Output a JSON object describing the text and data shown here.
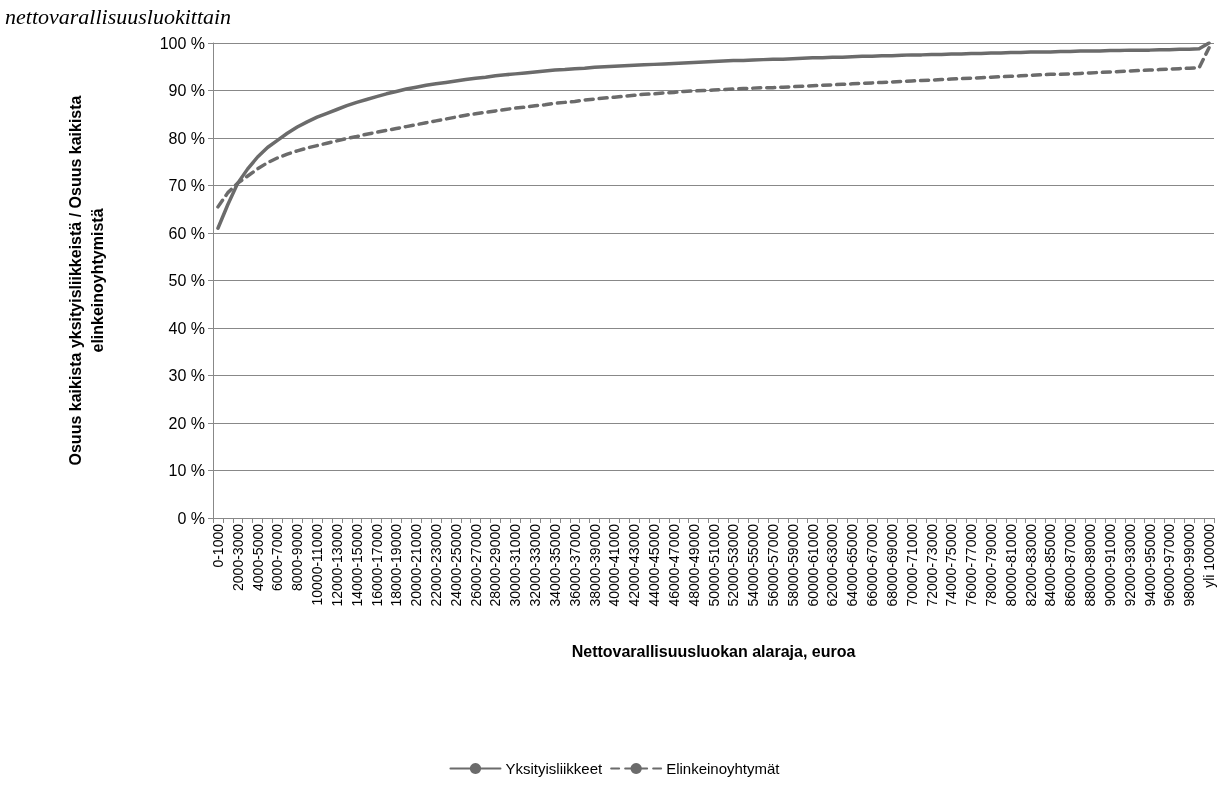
{
  "chart_data": {
    "type": "line",
    "title": "nettovarallisuusluokittain",
    "xlabel": "Nettovarallisuusluokan alaraja, euroa",
    "ylabel": "Osuus kaikista yksityisliikkeistä / Osuus kaikista\nelinkeinoyhtymistä",
    "categories": [
      "0-1000",
      null,
      "2000-3000",
      null,
      "4000-5000",
      null,
      "6000-7000",
      null,
      "8000-9000",
      null,
      "10000-11000",
      null,
      "12000-13000",
      null,
      "14000-15000",
      null,
      "16000-17000",
      null,
      "18000-19000",
      null,
      "20000-21000",
      null,
      "22000-23000",
      null,
      "24000-25000",
      null,
      "26000-27000",
      null,
      "28000-29000",
      null,
      "30000-31000",
      null,
      "32000-33000",
      null,
      "34000-35000",
      null,
      "36000-37000",
      null,
      "38000-39000",
      null,
      "40000-41000",
      null,
      "42000-43000",
      null,
      "44000-45000",
      null,
      "46000-47000",
      null,
      "48000-49000",
      null,
      "50000-51000",
      null,
      "52000-53000",
      null,
      "54000-55000",
      null,
      "56000-57000",
      null,
      "58000-59000",
      null,
      "60000-61000",
      null,
      "62000-63000",
      null,
      "64000-65000",
      null,
      "66000-67000",
      null,
      "68000-69000",
      null,
      "70000-71000",
      null,
      "72000-73000",
      null,
      "74000-75000",
      null,
      "76000-77000",
      null,
      "78000-79000",
      null,
      "80000-81000",
      null,
      "82000-83000",
      null,
      "84000-85000",
      null,
      "86000-87000",
      null,
      "88000-89000",
      null,
      "90000-91000",
      null,
      "92000-93000",
      null,
      "94000-95000",
      null,
      "96000-97000",
      null,
      "98000-99000",
      null,
      "yli 100000"
    ],
    "series": [
      {
        "name": "Yksityisliikkeet",
        "color": "#6b6b6b",
        "line_style": "solid",
        "values": [
          61,
          66,
          70.5,
          73.5,
          76,
          78,
          79.5,
          81,
          82.3,
          83.4,
          84.4,
          85.2,
          86,
          86.8,
          87.5,
          88.1,
          88.7,
          89.3,
          89.8,
          90.3,
          90.7,
          91.1,
          91.4,
          91.7,
          92,
          92.3,
          92.6,
          92.8,
          93.1,
          93.3,
          93.5,
          93.7,
          93.9,
          94.1,
          94.3,
          94.4,
          94.6,
          94.7,
          94.9,
          95,
          95.1,
          95.2,
          95.3,
          95.4,
          95.5,
          95.6,
          95.7,
          95.8,
          95.9,
          96,
          96.1,
          96.2,
          96.3,
          96.3,
          96.4,
          96.5,
          96.6,
          96.6,
          96.7,
          96.8,
          96.9,
          96.9,
          97,
          97,
          97.1,
          97.2,
          97.2,
          97.3,
          97.3,
          97.4,
          97.5,
          97.5,
          97.6,
          97.6,
          97.7,
          97.7,
          97.8,
          97.8,
          97.9,
          97.9,
          98,
          98,
          98.1,
          98.1,
          98.1,
          98.2,
          98.2,
          98.3,
          98.3,
          98.3,
          98.4,
          98.4,
          98.5,
          98.5,
          98.5,
          98.6,
          98.6,
          98.7,
          98.7,
          98.8,
          100
        ]
      },
      {
        "name": "Elinkeinoyhtymät",
        "color": "#6b6b6b",
        "line_style": "dashed",
        "values": [
          65.5,
          68.5,
          70.5,
          72,
          73.5,
          74.8,
          75.8,
          76.6,
          77.3,
          77.9,
          78.4,
          78.9,
          79.4,
          79.9,
          80.3,
          80.8,
          81.2,
          81.6,
          82,
          82.4,
          82.8,
          83.2,
          83.6,
          84,
          84.4,
          84.8,
          85.1,
          85.4,
          85.7,
          86,
          86.3,
          86.5,
          86.8,
          87,
          87.3,
          87.5,
          87.7,
          88,
          88.2,
          88.4,
          88.6,
          88.8,
          89,
          89.2,
          89.3,
          89.5,
          89.6,
          89.8,
          89.9,
          90,
          90.1,
          90.2,
          90.3,
          90.4,
          90.5,
          90.6,
          90.6,
          90.7,
          90.8,
          90.9,
          91,
          91.1,
          91.2,
          91.3,
          91.4,
          91.5,
          91.6,
          91.7,
          91.8,
          91.9,
          92,
          92.1,
          92.2,
          92.3,
          92.4,
          92.5,
          92.6,
          92.7,
          92.8,
          92.9,
          93,
          93.1,
          93.2,
          93.3,
          93.4,
          93.4,
          93.5,
          93.6,
          93.7,
          93.8,
          93.9,
          94,
          94.1,
          94.2,
          94.3,
          94.4,
          94.5,
          94.6,
          94.7,
          94.8,
          99
        ]
      }
    ],
    "ylim": [
      0,
      100
    ],
    "yticks": [
      {
        "value": 0,
        "label": "0 %"
      },
      {
        "value": 10,
        "label": "10 %"
      },
      {
        "value": 20,
        "label": "20 %"
      },
      {
        "value": 30,
        "label": "30 %"
      },
      {
        "value": 40,
        "label": "40 %"
      },
      {
        "value": 50,
        "label": "50 %"
      },
      {
        "value": 60,
        "label": "60 %"
      },
      {
        "value": 70,
        "label": "70 %"
      },
      {
        "value": 80,
        "label": "80 %"
      },
      {
        "value": 90,
        "label": "90 %"
      },
      {
        "value": 100,
        "label": "100 %"
      }
    ],
    "grid": "y",
    "legend": "bottom",
    "marker": "none"
  }
}
